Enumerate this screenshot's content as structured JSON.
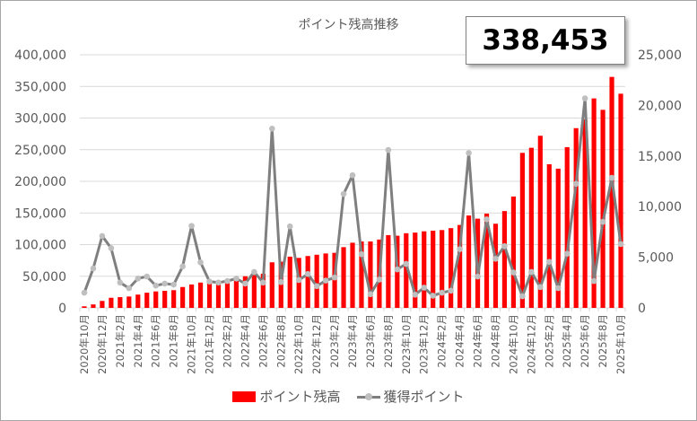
{
  "chart_data": {
    "type": "bar+line",
    "title": "ポイント残高推移",
    "highlight_value": "338,453",
    "categories": [
      "2020年10月",
      "2020年11月",
      "2020年12月",
      "2021年1月",
      "2021年2月",
      "2021年3月",
      "2021年4月",
      "2021年5月",
      "2021年6月",
      "2021年7月",
      "2021年8月",
      "2021年9月",
      "2021年10月",
      "2021年11月",
      "2021年12月",
      "2022年1月",
      "2022年2月",
      "2022年3月",
      "2022年4月",
      "2022年5月",
      "2022年6月",
      "2022年7月",
      "2022年8月",
      "2022年9月",
      "2022年10月",
      "2022年11月",
      "2022年12月",
      "2023年1月",
      "2023年2月",
      "2023年3月",
      "2023年4月",
      "2023年5月",
      "2023年6月",
      "2023年7月",
      "2023年8月",
      "2023年9月",
      "2023年10月",
      "2023年11月",
      "2023年12月",
      "2024年1月",
      "2024年2月",
      "2024年3月",
      "2024年4月",
      "2024年5月",
      "2024年6月",
      "2024年7月",
      "2024年8月",
      "2024年9月",
      "2024年10月",
      "2024年11月",
      "2024年12月",
      "2025年1月",
      "2025年2月",
      "2025年3月",
      "2025年4月",
      "2025年5月",
      "2025年6月",
      "2025年7月",
      "2025年8月",
      "2025年9月",
      "2025年10月"
    ],
    "x_tick_labels": [
      "2020年10月",
      "2020年12月",
      "2021年2月",
      "2021年4月",
      "2021年6月",
      "2021年8月",
      "2021年10月",
      "2021年12月",
      "2022年2月",
      "2022年4月",
      "2022年6月",
      "2022年8月",
      "2022年10月",
      "2022年12月",
      "2023年2月",
      "2023年4月",
      "2023年6月",
      "2023年8月",
      "2023年10月",
      "2023年12月",
      "2024年2月",
      "2024年4月",
      "2024年6月",
      "2024年8月",
      "2024年10月",
      "2024年12月",
      "2025年2月",
      "2025年4月",
      "2025年6月",
      "2025年8月",
      "2025年10月"
    ],
    "y_left": {
      "range": [
        0,
        400000
      ],
      "tick_labels": [
        "0",
        "50,000",
        "100,000",
        "150,000",
        "200,000",
        "250,000",
        "300,000",
        "350,000",
        "400,000"
      ]
    },
    "y_right": {
      "range": [
        0,
        25000
      ],
      "tick_labels": [
        "0",
        "5,000",
        "10,000",
        "15,000",
        "20,000",
        "25,000"
      ]
    },
    "grid": true,
    "legend_position": "bottom",
    "series": [
      {
        "name": "ポイント残高",
        "type": "bar",
        "axis": "left",
        "color": "#ff0000",
        "values": [
          2500,
          5500,
          11000,
          16000,
          17000,
          18000,
          21000,
          24000,
          26000,
          27000,
          28000,
          33000,
          37000,
          40000,
          40000,
          41000,
          42000,
          45000,
          50000,
          52000,
          54000,
          72000,
          73000,
          81000,
          79000,
          82000,
          84000,
          86000,
          87000,
          96000,
          103000,
          105000,
          105000,
          108000,
          115000,
          114000,
          118000,
          119000,
          121000,
          122000,
          123000,
          126000,
          131000,
          146000,
          141000,
          149000,
          133000,
          153000,
          176000,
          245000,
          253000,
          272000,
          227000,
          220000,
          254000,
          284000,
          298000,
          331000,
          313000,
          365000,
          338453
        ]
      },
      {
        "name": "獲得ポイント",
        "type": "line",
        "axis": "right",
        "color": "#7f7f7f",
        "marker_color": "#bfbfbf",
        "values": [
          1500,
          3900,
          7100,
          5900,
          2500,
          1950,
          2900,
          3100,
          2200,
          2400,
          2300,
          4100,
          8100,
          4500,
          2600,
          2500,
          2650,
          2900,
          2400,
          3550,
          2500,
          17700,
          2550,
          8050,
          2750,
          3350,
          2150,
          2700,
          3000,
          11250,
          13100,
          5300,
          1350,
          2800,
          15600,
          3800,
          4350,
          1300,
          2000,
          1200,
          1500,
          1700,
          5800,
          15300,
          3100,
          8750,
          4850,
          6100,
          3500,
          1150,
          3550,
          2050,
          4550,
          1950,
          5350,
          12250,
          20700,
          2650,
          8500,
          12850,
          6300
        ]
      }
    ]
  }
}
